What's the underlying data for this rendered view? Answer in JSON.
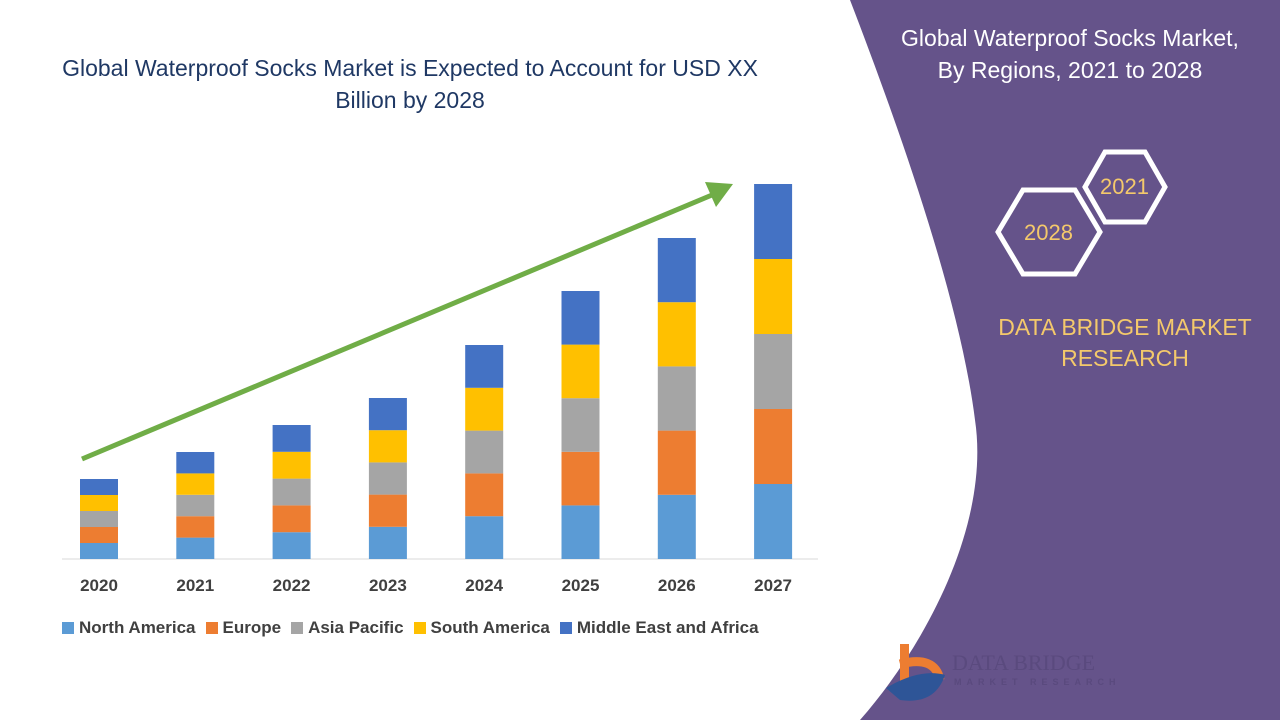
{
  "title": "Global Waterproof Socks Market is Expected to Account for USD XX Billion by 2028",
  "side_panel": {
    "title_line1": "Global Waterproof Socks Market,",
    "title_line2": "By Regions, 2021 to 2028",
    "hex_years": [
      "2021",
      "2028"
    ],
    "brand_line1": "DATA BRIDGE MARKET",
    "brand_line2": "RESEARCH",
    "logo_text": "DATA BRIDGE",
    "logo_subtext": "MARKET RESEARCH",
    "panel_color": "#65538a"
  },
  "chart_data": {
    "type": "bar",
    "stacked": true,
    "title": "Global Waterproof Socks Market is Expected to Account for USD XX Billion by 2028",
    "categories": [
      "2020",
      "2021",
      "2022",
      "2023",
      "2024",
      "2025",
      "2026",
      "2027"
    ],
    "series": [
      {
        "name": "North America",
        "color": "#5b9bd5",
        "values": [
          16,
          21.4,
          26.8,
          32.2,
          42.8,
          53.6,
          64.2,
          75
        ]
      },
      {
        "name": "Europe",
        "color": "#ed7d31",
        "values": [
          16,
          21.4,
          26.8,
          32.2,
          42.8,
          53.6,
          64.2,
          75
        ]
      },
      {
        "name": "Asia Pacific",
        "color": "#a5a5a5",
        "values": [
          16,
          21.4,
          26.8,
          32.2,
          42.8,
          53.6,
          64.2,
          75
        ]
      },
      {
        "name": "South America",
        "color": "#ffc000",
        "values": [
          16,
          21.4,
          26.8,
          32.2,
          42.8,
          53.6,
          64.2,
          75
        ]
      },
      {
        "name": "Middle East and Africa",
        "color": "#4472c4",
        "values": [
          16,
          21.4,
          26.8,
          32.2,
          42.8,
          53.6,
          64.2,
          75
        ]
      }
    ],
    "xlabel": "",
    "ylabel": "",
    "y_axis_labels_shown": false,
    "grid": false,
    "legend_position": "bottom",
    "trend_arrow_color": "#70ad47"
  }
}
